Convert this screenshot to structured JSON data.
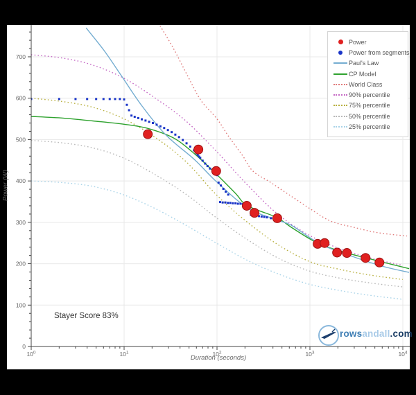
{
  "annotation": {
    "text": "Stayer Score 83%"
  },
  "branding": {
    "prefix": "rows",
    "middle": "andall",
    "suffix": ".com"
  },
  "legend": {
    "items": [
      {
        "key": "power",
        "label": "Power",
        "swatch": "dot",
        "color": "#e02020",
        "size": 7
      },
      {
        "key": "segments",
        "label": "Power from segments",
        "swatch": "dot",
        "color": "#1a35c8",
        "size": 6
      },
      {
        "key": "pauls",
        "label": "Paul's Law",
        "swatch": "line",
        "color": "#74add1"
      },
      {
        "key": "cp",
        "label": "CP Model",
        "swatch": "line",
        "color": "#2ea22e"
      },
      {
        "key": "wc",
        "label": "World Class",
        "swatch": "dotted",
        "color": "#e07b7b"
      },
      {
        "key": "p90",
        "label": "90% percentile",
        "swatch": "dotted",
        "color": "#c569c5"
      },
      {
        "key": "p75",
        "label": "75% percentile",
        "swatch": "dotted",
        "color": "#b8b040"
      },
      {
        "key": "p50",
        "label": "50% percentile",
        "swatch": "dotted",
        "color": "#b8b8b8"
      },
      {
        "key": "p25",
        "label": "25% percentile",
        "swatch": "dotted",
        "color": "#a8d3e8"
      }
    ]
  },
  "chart_data": {
    "type": "line",
    "title": "",
    "xlabel": "Duration (seconds)",
    "ylabel": "Power (W)",
    "x_scale": "log",
    "x_range": [
      1,
      10000
    ],
    "y_range": [
      0,
      777
    ],
    "x_tick_base": "10",
    "x_tick_exponents": [
      0,
      1,
      2,
      3,
      4
    ],
    "y_ticks": [
      0,
      100,
      200,
      300,
      400,
      500,
      600,
      700
    ],
    "grid": true,
    "legend_position": "top-right",
    "series": [
      {
        "key": "p25",
        "name": "25% percentile",
        "type": "line",
        "dash": true,
        "color": "#a8d3e8",
        "x": [
          1,
          2.17,
          4.61,
          10,
          21.7,
          46.2,
          100,
          213,
          461,
          1000,
          2128,
          4613,
          10000
        ],
        "values": [
          400,
          396,
          387,
          366,
          333,
          293,
          249,
          208,
          175,
          150,
          135,
          123,
          114
        ]
      },
      {
        "key": "p50",
        "name": "50% percentile",
        "type": "line",
        "dash": true,
        "color": "#b8b8b8",
        "x": [
          1,
          2.17,
          4.61,
          10,
          21.7,
          46.2,
          100,
          213,
          461,
          1000,
          2128,
          4613,
          10000
        ],
        "values": [
          498,
          492,
          480,
          455,
          415,
          368,
          310,
          258,
          213,
          182,
          165,
          153,
          144
        ]
      },
      {
        "key": "p75",
        "name": "75% percentile",
        "type": "line",
        "dash": true,
        "color": "#b8b040",
        "x": [
          1,
          2.17,
          4.61,
          10,
          21.7,
          46.2,
          100,
          213,
          461,
          1000,
          2128,
          4613,
          10000
        ],
        "values": [
          600,
          592,
          578,
          550,
          505,
          447,
          365,
          300,
          245,
          205,
          186,
          172,
          162
        ]
      },
      {
        "key": "p90",
        "name": "90% percentile",
        "type": "line",
        "dash": true,
        "color": "#c569c5",
        "x": [
          1,
          2.17,
          4.61,
          10,
          21.7,
          46.2,
          100,
          213,
          461,
          1000,
          2128,
          4613,
          10000
        ],
        "values": [
          705,
          697,
          680,
          648,
          600,
          545,
          470,
          390,
          318,
          268,
          236,
          213,
          196
        ]
      },
      {
        "key": "wc",
        "name": "World Class",
        "type": "line",
        "dash": true,
        "color": "#e07b7b",
        "x": [
          24.4,
          34,
          48,
          67,
          100,
          134,
          190,
          243,
          380,
          630,
          1050,
          1675,
          2950,
          5400,
          11100
        ],
        "values": [
          775,
          720,
          655,
          595,
          550,
          507,
          460,
          424,
          396,
          363,
          330,
          303,
          288,
          275,
          267
        ]
      },
      {
        "key": "cp",
        "name": "CP Model",
        "type": "line",
        "dash": false,
        "color": "#2ea22e",
        "x": [
          1,
          2.2,
          4.6,
          10,
          18,
          34,
          57,
          100,
          158,
          213,
          438,
          630,
          1210,
          2500,
          5600,
          11700
        ],
        "values": [
          556,
          552,
          545,
          537,
          527,
          504,
          466,
          415,
          370,
          340,
          312,
          288,
          250,
          226,
          206,
          188
        ]
      },
      {
        "key": "pauls",
        "name": "Paul's Law",
        "type": "line",
        "dash": false,
        "color": "#74add1",
        "x": [
          3.9,
          6.1,
          9.3,
          15.6,
          28.5,
          57,
          100,
          213,
          438,
          630,
          1210,
          1960,
          5600,
          11700
        ],
        "values": [
          770,
          715,
          655,
          581,
          510,
          452,
          397,
          335,
          306,
          293,
          251,
          231,
          196,
          179
        ]
      },
      {
        "key": "segments",
        "name": "Power from segments",
        "type": "scatter",
        "marker": "square",
        "color": "#1a35c8",
        "size": 3,
        "x": [
          1,
          2,
          3,
          4,
          5,
          6,
          7,
          8,
          9,
          10,
          10.7,
          11.3,
          12,
          13,
          14.2,
          15.5,
          17,
          18.6,
          20.4,
          22.4,
          24.6,
          27,
          29.6,
          32.5,
          35.6,
          39,
          42.8,
          47,
          51.5,
          56.5,
          60,
          62,
          64,
          66,
          70,
          74.5,
          79,
          84,
          89.5,
          95,
          101,
          104,
          110,
          117,
          124,
          132,
          108,
          115,
          123,
          131,
          139,
          148,
          158,
          168,
          179,
          190,
          202,
          232,
          248,
          265,
          283,
          302,
          322,
          344,
          380
        ],
        "values": [
          598,
          598,
          598,
          598,
          598,
          598,
          598,
          598,
          598,
          597,
          584,
          571,
          558,
          555,
          552,
          549,
          546,
          543,
          540,
          536,
          532,
          528,
          523,
          518,
          512,
          506,
          499,
          491,
          483,
          474,
          467,
          463,
          459,
          456,
          449,
          442,
          436,
          430,
          424,
          419,
          414,
          396,
          389,
          381,
          374,
          367,
          349,
          348,
          348,
          347,
          347,
          346,
          346,
          345,
          345,
          344,
          344,
          318,
          317,
          316,
          315,
          314,
          313,
          312,
          310
        ]
      },
      {
        "key": "power",
        "name": "Power",
        "type": "scatter",
        "marker": "circle",
        "color": "#e02020",
        "edge_color": "#a01414",
        "size": 13,
        "x": [
          18,
          63,
          98,
          209,
          253,
          445,
          1210,
          1440,
          1960,
          2500,
          3970,
          5600
        ],
        "values": [
          513,
          476,
          424,
          340,
          323,
          310,
          248,
          250,
          227,
          226,
          214,
          203
        ]
      }
    ],
    "annotations": [
      "Stayer Score 83%"
    ]
  }
}
